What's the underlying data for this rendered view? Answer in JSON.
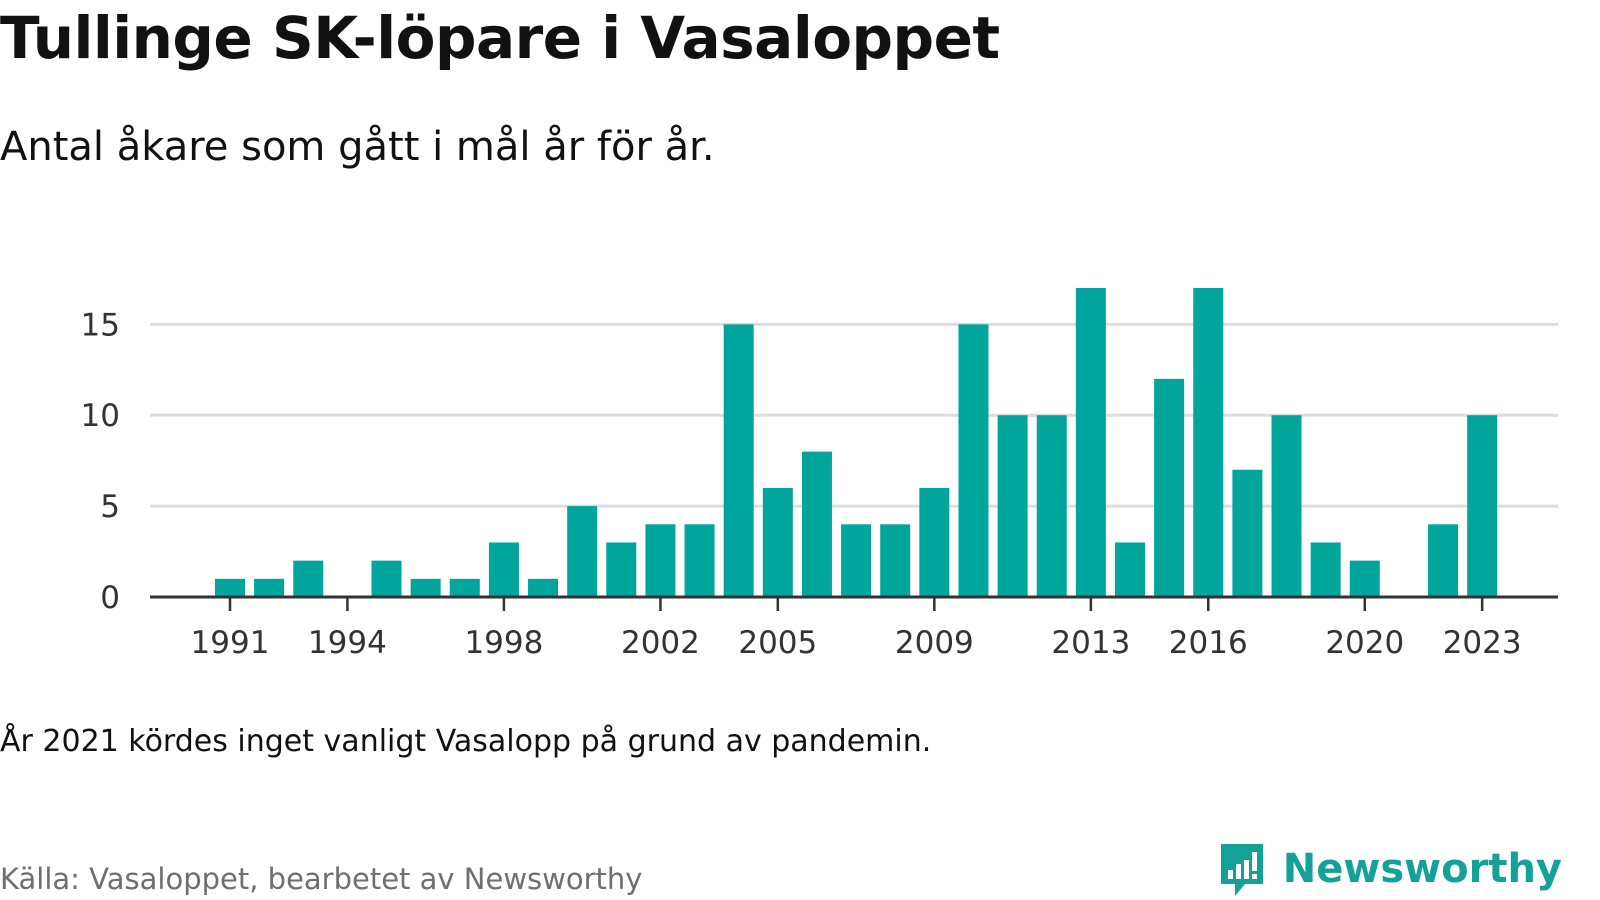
{
  "header": {
    "title": "Tullinge SK-löpare i Vasaloppet",
    "subtitle": "Antal åkare som gått i mål år för år."
  },
  "footer": {
    "note": "År 2021 kördes inget vanligt Vasalopp på grund av pandemin.",
    "source": "Källa: Vasaloppet, bearbetet av Newsworthy",
    "brand": "Newsworthy",
    "brand_icon": "bar-chart-bubble-icon"
  },
  "colors": {
    "bar": "#00a59b",
    "grid": "#dddddd",
    "axis": "#333333",
    "brand": "#14a198"
  },
  "chart_data": {
    "type": "bar",
    "title": "Tullinge SK-löpare i Vasaloppet",
    "subtitle": "Antal åkare som gått i mål år för år.",
    "xlabel": "",
    "ylabel": "",
    "ylim": [
      0,
      17
    ],
    "yticks": [
      0,
      5,
      10,
      15
    ],
    "xtick_labels": [
      1991,
      1994,
      1998,
      2002,
      2005,
      2009,
      2013,
      2016,
      2020,
      2023
    ],
    "categories": [
      1991,
      1992,
      1993,
      1994,
      1995,
      1996,
      1997,
      1998,
      1999,
      2000,
      2001,
      2002,
      2003,
      2004,
      2005,
      2006,
      2007,
      2008,
      2009,
      2010,
      2011,
      2012,
      2013,
      2014,
      2015,
      2016,
      2017,
      2018,
      2019,
      2020,
      2021,
      2022,
      2023
    ],
    "values": [
      1,
      1,
      2,
      0,
      2,
      1,
      1,
      3,
      1,
      5,
      3,
      4,
      4,
      15,
      6,
      8,
      4,
      4,
      6,
      15,
      10,
      10,
      17,
      3,
      12,
      17,
      7,
      10,
      3,
      2,
      0,
      4,
      10
    ],
    "grid": true
  }
}
